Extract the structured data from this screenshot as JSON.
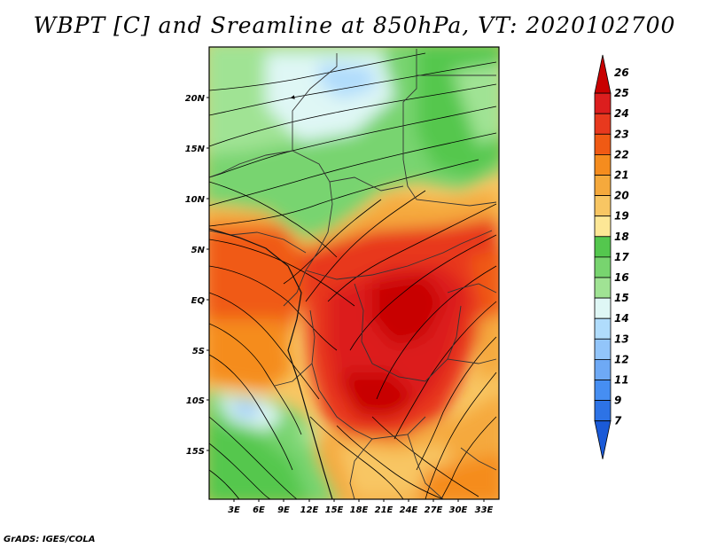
{
  "title": "WBPT [C] and Sreamline at 850hPa, VT: 2020102700",
  "credit": "GrADS: IGES/COLA",
  "map": {
    "lat_labels": [
      "20N",
      "15N",
      "10N",
      "5N",
      "EQ",
      "5S",
      "10S",
      "15S"
    ],
    "lon_labels": [
      "3E",
      "6E",
      "9E",
      "12E",
      "15E",
      "18E",
      "21E",
      "24E",
      "27E",
      "30E",
      "33E"
    ]
  },
  "colorbar": {
    "levels": [
      "26",
      "25",
      "24",
      "23",
      "22",
      "21",
      "20",
      "19",
      "18",
      "17",
      "16",
      "15",
      "14",
      "13",
      "12",
      "11",
      "9",
      "7"
    ],
    "colors": [
      "#c80000",
      "#dc1e1e",
      "#e8391e",
      "#f05a14",
      "#f58c1e",
      "#f5a93c",
      "#f8c663",
      "#fde796",
      "#54c74e",
      "#78d46f",
      "#a0e394",
      "#dff7f5",
      "#b0dcfc",
      "#92c5fa",
      "#6ea9f5",
      "#468ef2",
      "#2d73e6",
      "#1a5ad8"
    ]
  }
}
